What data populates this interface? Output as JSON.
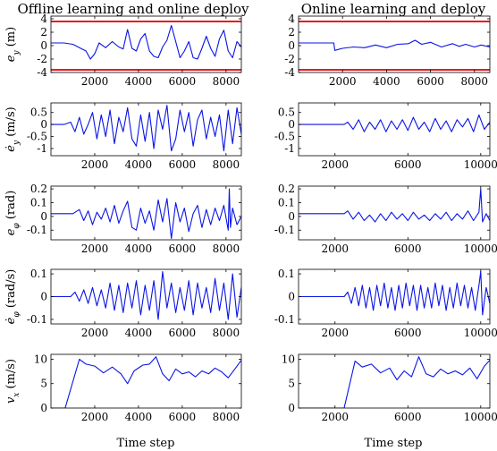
{
  "columns": [
    {
      "title": "Offline learning and online deploy"
    },
    {
      "title": "Online learning and deploy"
    }
  ],
  "xlabel": "Time step",
  "chart_data": [
    {
      "type": "line",
      "col": 0,
      "row": 0,
      "ylabel": "e_y (m)",
      "xlim": [
        0,
        8700
      ],
      "ylim": [
        -4,
        4.4
      ],
      "xticks": [
        2000,
        4000,
        6000,
        8000
      ],
      "xticklabels": [
        "2000",
        "4000",
        "6000",
        "8000"
      ],
      "yticks": [
        -4,
        -2,
        0,
        2,
        4
      ],
      "yticklabels": [
        "-4",
        "-2",
        "0",
        "2",
        "4"
      ],
      "hlines": [
        {
          "y": 3.6,
          "color": "#e8191e"
        },
        {
          "y": -3.6,
          "color": "#e8191e"
        }
      ],
      "series": [
        {
          "color": "#0a14e6",
          "x": [
            0,
            600,
            1000,
            1300,
            1600,
            1800,
            2000,
            2200,
            2500,
            2800,
            3100,
            3300,
            3500,
            3700,
            3900,
            4100,
            4300,
            4500,
            4700,
            4900,
            5100,
            5300,
            5500,
            5700,
            5900,
            6100,
            6300,
            6500,
            6700,
            6900,
            7100,
            7300,
            7500,
            7700,
            7900,
            8100,
            8300,
            8500,
            8700
          ],
          "y": [
            0.4,
            0.4,
            0.2,
            -0.3,
            -0.8,
            -2.0,
            -1.2,
            0.4,
            -0.3,
            0.6,
            -0.2,
            -0.5,
            2.4,
            -0.4,
            -0.8,
            1.0,
            1.8,
            -0.8,
            -1.6,
            -1.8,
            -0.2,
            0.8,
            3.0,
            0.6,
            -1.8,
            -0.8,
            0.6,
            -1.8,
            -2.0,
            -0.4,
            1.4,
            -0.4,
            -1.6,
            1.0,
            2.3,
            -0.8,
            -1.8,
            0.6,
            -0.2
          ]
        }
      ]
    },
    {
      "type": "line",
      "col": 1,
      "row": 0,
      "xlim": [
        0,
        8700
      ],
      "ylim": [
        -4,
        4.4
      ],
      "xticks": [
        2000,
        4000,
        6000,
        8000
      ],
      "xticklabels": [
        "2000",
        "4000",
        "6000",
        "8000"
      ],
      "yticks": [
        -4,
        -2,
        0,
        2,
        4
      ],
      "yticklabels": [
        "-4",
        "-2",
        "0",
        "2",
        "4"
      ],
      "hlines": [
        {
          "y": 3.6,
          "color": "#e8191e"
        },
        {
          "y": -3.6,
          "color": "#e8191e"
        }
      ],
      "series": [
        {
          "color": "#0a14e6",
          "x": [
            0,
            1600,
            1650,
            2000,
            2500,
            3000,
            3500,
            4000,
            4500,
            5000,
            5300,
            5600,
            6000,
            6500,
            7000,
            7300,
            7600,
            8000,
            8300,
            8700
          ],
          "y": [
            0.4,
            0.4,
            -0.7,
            -0.4,
            -0.2,
            -0.3,
            0.1,
            -0.3,
            0.2,
            0.3,
            0.8,
            0.2,
            0.5,
            -0.2,
            0.3,
            -0.1,
            0.2,
            -0.2,
            0.1,
            -0.2
          ]
        }
      ]
    },
    {
      "type": "line",
      "col": 0,
      "row": 1,
      "ylabel": "ė_y (m/s)",
      "xlim": [
        0,
        8700
      ],
      "ylim": [
        -1.3,
        0.9
      ],
      "xticks": [
        2000,
        4000,
        6000,
        8000
      ],
      "xticklabels": [
        "2000",
        "4000",
        "6000",
        "8000"
      ],
      "yticks": [
        -1,
        -0.5,
        0,
        0.5
      ],
      "yticklabels": [
        "-1",
        "-0.5",
        "0",
        "0.5"
      ],
      "series": [
        {
          "color": "#0a14e6",
          "x": [
            0,
            600,
            900,
            1100,
            1300,
            1500,
            1700,
            1900,
            2100,
            2300,
            2500,
            2700,
            2900,
            3100,
            3300,
            3500,
            3700,
            3900,
            4100,
            4300,
            4500,
            4700,
            4900,
            5100,
            5300,
            5500,
            5700,
            5900,
            6100,
            6300,
            6500,
            6700,
            6900,
            7100,
            7300,
            7500,
            7700,
            7900,
            8100,
            8300,
            8500,
            8700
          ],
          "y": [
            0,
            0,
            0.1,
            -0.3,
            0.3,
            -0.4,
            0.0,
            0.5,
            -0.6,
            0.4,
            -0.5,
            0.6,
            -0.8,
            0.3,
            -0.3,
            0.7,
            -0.6,
            -0.9,
            0.4,
            -0.7,
            0.5,
            -1.0,
            0.6,
            -0.2,
            0.8,
            -1.1,
            -0.6,
            0.6,
            -0.3,
            0.5,
            -0.9,
            0.2,
            0.6,
            -0.6,
            0.3,
            -0.5,
            0.4,
            -1.1,
            0.6,
            -0.8,
            0.7,
            -0.4
          ]
        }
      ]
    },
    {
      "type": "line",
      "col": 1,
      "row": 1,
      "xlim": [
        0,
        10500
      ],
      "ylim": [
        -1.3,
        0.9
      ],
      "xticks": [
        2000,
        6000,
        10000
      ],
      "xticklabels": [
        "2000",
        "6000",
        "10000"
      ],
      "yticks": [
        -1,
        -0.5,
        0,
        0.5
      ],
      "yticklabels": [
        "-1",
        "-0.5",
        "0",
        "0.5"
      ],
      "series": [
        {
          "color": "#0a14e6",
          "x": [
            0,
            2500,
            2700,
            3000,
            3300,
            3600,
            3900,
            4200,
            4500,
            4800,
            5100,
            5400,
            5700,
            6000,
            6300,
            6600,
            6900,
            7200,
            7500,
            7800,
            8100,
            8400,
            8700,
            9000,
            9300,
            9600,
            9900,
            10200,
            10500
          ],
          "y": [
            0,
            0,
            0.1,
            -0.2,
            0.2,
            -0.3,
            0.1,
            -0.2,
            0.2,
            -0.3,
            0.15,
            -0.2,
            0.2,
            -0.25,
            0.3,
            -0.2,
            0.1,
            -0.3,
            0.25,
            -0.2,
            0.15,
            -0.3,
            0.2,
            -0.1,
            0.25,
            -0.3,
            0.4,
            -0.2,
            0.1
          ]
        }
      ]
    },
    {
      "type": "line",
      "col": 0,
      "row": 2,
      "ylabel": "e_φ (rad)",
      "xlim": [
        0,
        8700
      ],
      "ylim": [
        -0.17,
        0.22
      ],
      "xticks": [
        2000,
        4000,
        6000,
        8000
      ],
      "xticklabels": [
        "2000",
        "4000",
        "6000",
        "8000"
      ],
      "yticks": [
        -0.1,
        0,
        0.1,
        0.2
      ],
      "yticklabels": [
        "-0.1",
        "0",
        "0.1",
        "0.2"
      ],
      "series": [
        {
          "color": "#0a14e6",
          "x": [
            0,
            1000,
            1300,
            1500,
            1700,
            1900,
            2100,
            2300,
            2500,
            2700,
            2900,
            3100,
            3300,
            3500,
            3700,
            3900,
            4100,
            4300,
            4500,
            4700,
            4900,
            5100,
            5300,
            5500,
            5700,
            5900,
            6100,
            6300,
            6500,
            6700,
            6900,
            7100,
            7300,
            7500,
            7700,
            7900,
            8100,
            8150,
            8200,
            8300,
            8500,
            8700
          ],
          "y": [
            0.02,
            0.02,
            0.05,
            -0.03,
            0.04,
            -0.06,
            0.03,
            -0.02,
            0.06,
            -0.04,
            0.08,
            -0.05,
            0.04,
            0.11,
            -0.08,
            -0.1,
            0.06,
            -0.05,
            0.04,
            -0.1,
            0.12,
            -0.04,
            0.13,
            -0.16,
            0.1,
            -0.04,
            0.06,
            -0.11,
            0.02,
            0.08,
            -0.08,
            0.05,
            -0.06,
            0.06,
            -0.03,
            0.08,
            -0.1,
            0.2,
            -0.08,
            0.06,
            -0.06,
            0.0
          ]
        }
      ]
    },
    {
      "type": "line",
      "col": 1,
      "row": 2,
      "xlim": [
        0,
        10500
      ],
      "ylim": [
        -0.17,
        0.22
      ],
      "xticks": [
        2000,
        6000,
        10000
      ],
      "xticklabels": [
        "2000",
        "6000",
        "10000"
      ],
      "yticks": [
        -0.1,
        0,
        0.1,
        0.2
      ],
      "yticklabels": [
        "-0.1",
        "0",
        "0.1",
        "0.2"
      ],
      "series": [
        {
          "color": "#0a14e6",
          "x": [
            0,
            2500,
            2700,
            3000,
            3300,
            3600,
            3900,
            4200,
            4500,
            4800,
            5100,
            5400,
            5700,
            6000,
            6300,
            6600,
            6900,
            7200,
            7500,
            7800,
            8100,
            8400,
            8700,
            9000,
            9300,
            9600,
            9900,
            10000,
            10100,
            10300,
            10500
          ],
          "y": [
            0.02,
            0.02,
            0.04,
            -0.02,
            0.03,
            -0.03,
            0.01,
            -0.04,
            0.02,
            -0.03,
            0.03,
            -0.02,
            0.02,
            -0.03,
            0.03,
            -0.02,
            0.01,
            -0.03,
            0.02,
            -0.02,
            0.03,
            -0.03,
            0.02,
            -0.02,
            0.04,
            -0.03,
            0.03,
            0.2,
            -0.04,
            0.02,
            -0.03
          ]
        }
      ]
    },
    {
      "type": "line",
      "col": 0,
      "row": 3,
      "ylabel": "ė_φ (rad/s)",
      "xlim": [
        0,
        8700
      ],
      "ylim": [
        -0.12,
        0.12
      ],
      "xticks": [
        2000,
        4000,
        6000,
        8000
      ],
      "xticklabels": [
        "2000",
        "4000",
        "6000",
        "8000"
      ],
      "yticks": [
        -0.1,
        0,
        0.1
      ],
      "yticklabels": [
        "-0.1",
        "0",
        "0.1"
      ],
      "series": [
        {
          "color": "#0a14e6",
          "x": [
            0,
            900,
            1100,
            1300,
            1500,
            1700,
            1900,
            2100,
            2300,
            2500,
            2700,
            2900,
            3100,
            3300,
            3500,
            3700,
            3900,
            4100,
            4300,
            4500,
            4700,
            4900,
            5100,
            5300,
            5500,
            5700,
            5900,
            6100,
            6300,
            6500,
            6700,
            6900,
            7100,
            7300,
            7500,
            7700,
            7900,
            8100,
            8300,
            8500,
            8700
          ],
          "y": [
            0,
            0,
            0.02,
            -0.02,
            0.03,
            -0.03,
            0.04,
            -0.04,
            0.03,
            -0.05,
            0.06,
            -0.06,
            0.05,
            -0.07,
            0.06,
            -0.05,
            0.07,
            -0.08,
            0.05,
            -0.06,
            0.07,
            -0.1,
            0.11,
            -0.05,
            0.06,
            -0.07,
            0.04,
            -0.06,
            0.07,
            -0.08,
            0.06,
            -0.05,
            0.04,
            -0.07,
            0.08,
            -0.06,
            0.06,
            -0.1,
            0.1,
            -0.09,
            0.04
          ]
        }
      ]
    },
    {
      "type": "line",
      "col": 1,
      "row": 3,
      "xlim": [
        0,
        10500
      ],
      "ylim": [
        -0.12,
        0.12
      ],
      "xticks": [
        2000,
        6000,
        10000
      ],
      "xticklabels": [
        "2000",
        "6000",
        "10000"
      ],
      "yticks": [
        -0.1,
        0,
        0.1
      ],
      "yticklabels": [
        "-0.1",
        "0",
        "0.1"
      ],
      "series": [
        {
          "color": "#0a14e6",
          "x": [
            0,
            2500,
            2700,
            2900,
            3100,
            3300,
            3500,
            3700,
            3900,
            4100,
            4300,
            4500,
            4700,
            4900,
            5100,
            5300,
            5500,
            5700,
            5900,
            6100,
            6300,
            6500,
            6700,
            6900,
            7100,
            7300,
            7500,
            7700,
            7900,
            8100,
            8300,
            8500,
            8700,
            8900,
            9100,
            9300,
            9500,
            9700,
            9900,
            10000,
            10100,
            10300,
            10500
          ],
          "y": [
            0,
            0,
            0.02,
            -0.03,
            0.04,
            -0.04,
            0.05,
            -0.05,
            0.04,
            -0.06,
            0.05,
            -0.04,
            0.06,
            -0.05,
            0.04,
            -0.06,
            0.05,
            -0.05,
            0.06,
            -0.04,
            0.05,
            -0.06,
            0.05,
            -0.05,
            0.04,
            -0.05,
            0.06,
            -0.04,
            0.05,
            -0.06,
            0.04,
            -0.05,
            0.06,
            -0.04,
            0.05,
            -0.05,
            0.04,
            -0.06,
            0.05,
            0.11,
            -0.08,
            0.04,
            -0.03
          ]
        }
      ]
    },
    {
      "type": "line",
      "col": 0,
      "row": 4,
      "ylabel": "v_x (m/s)",
      "xlim": [
        0,
        8700
      ],
      "ylim": [
        0,
        11
      ],
      "xticks": [
        2000,
        4000,
        6000,
        8000
      ],
      "xticklabels": [
        "2000",
        "4000",
        "6000",
        "8000"
      ],
      "yticks": [
        0,
        5,
        10
      ],
      "yticklabels": [
        "0",
        "5",
        "10"
      ],
      "series": [
        {
          "color": "#0a14e6",
          "x": [
            0,
            650,
            1300,
            1600,
            2000,
            2400,
            2800,
            3200,
            3500,
            3800,
            4200,
            4500,
            4800,
            5100,
            5400,
            5700,
            6000,
            6300,
            6600,
            6900,
            7200,
            7500,
            7800,
            8100,
            8400,
            8700
          ],
          "y": [
            0,
            0,
            10.0,
            9.0,
            8.6,
            7.2,
            8.4,
            7.0,
            5.0,
            7.6,
            8.8,
            9.0,
            10.5,
            7.0,
            5.6,
            8.0,
            7.0,
            7.4,
            6.4,
            7.6,
            7.0,
            8.2,
            7.4,
            6.2,
            8.0,
            9.8
          ]
        }
      ]
    },
    {
      "type": "line",
      "col": 1,
      "row": 4,
      "xlim": [
        0,
        10500
      ],
      "ylim": [
        0,
        11
      ],
      "xticks": [
        2000,
        6000,
        10000
      ],
      "xticklabels": [
        "2000",
        "6000",
        "10000"
      ],
      "yticks": [
        0,
        5,
        10
      ],
      "yticklabels": [
        "0",
        "5",
        "10"
      ],
      "series": [
        {
          "color": "#0a14e6",
          "x": [
            0,
            2500,
            3100,
            3500,
            4000,
            4500,
            5000,
            5400,
            5800,
            6200,
            6600,
            7000,
            7400,
            7800,
            8200,
            8600,
            9000,
            9400,
            9800,
            10200,
            10500
          ],
          "y": [
            0,
            0,
            9.6,
            8.4,
            9.0,
            7.2,
            8.2,
            5.8,
            7.6,
            6.4,
            10.5,
            7.0,
            6.4,
            8.0,
            7.0,
            7.6,
            6.8,
            8.2,
            6.0,
            8.6,
            9.8
          ]
        }
      ]
    }
  ]
}
